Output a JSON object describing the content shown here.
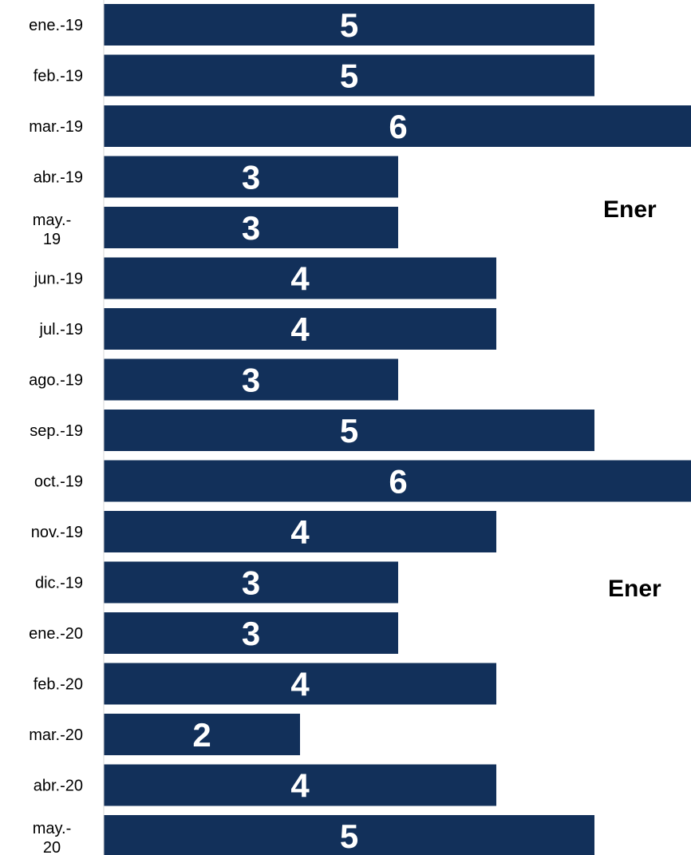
{
  "chart_data": {
    "type": "bar",
    "orientation": "horizontal",
    "categories": [
      "ene.-19",
      "feb.-19",
      "mar.-19",
      "abr.-19",
      "may.-19",
      "jun.-19",
      "jul.-19",
      "ago.-19",
      "sep.-19",
      "oct.-19",
      "nov.-19",
      "dic.-19",
      "ene.-20",
      "feb.-20",
      "mar.-20",
      "abr.-20",
      "may.-20"
    ],
    "values": [
      5,
      5,
      6,
      3,
      3,
      4,
      4,
      3,
      5,
      6,
      4,
      3,
      3,
      4,
      2,
      4,
      5
    ],
    "xlim": [
      0,
      6
    ],
    "grid": false,
    "bar_color": "#12305A",
    "value_label_color": "#FFFFFF"
  },
  "side_labels": [
    "Ener",
    "Ener"
  ]
}
